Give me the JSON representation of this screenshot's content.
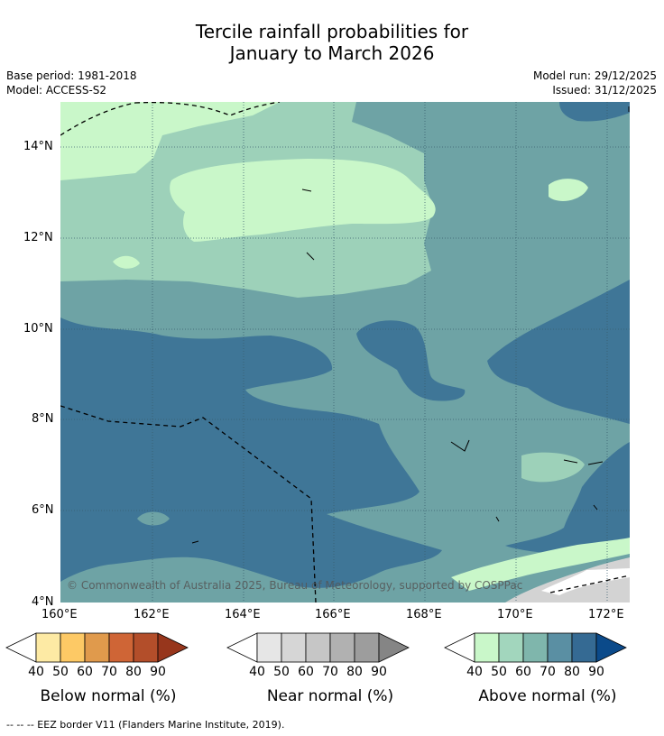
{
  "title": {
    "line1": "Tercile rainfall probabilities for",
    "line2": "January to March 2026"
  },
  "meta": {
    "base_period": "Base period: 1981-2018",
    "model": "Model: ACCESS-S2",
    "model_run": "Model run: 29/12/2025",
    "issued": "Issued: 31/12/2025"
  },
  "map": {
    "copyright": "© Commonwealth of Australia 2025, Bureau of Meteorology, supported by COSPPac",
    "lat_labels": [
      "14°N",
      "12°N",
      "10°N",
      "8°N",
      "6°N",
      "4°N"
    ],
    "lon_labels": [
      "160°E",
      "162°E",
      "164°E",
      "166°E",
      "168°E",
      "170°E",
      "172°E"
    ],
    "colors": {
      "above_50": "#c9f7c9",
      "above_60": "#9dd1b9",
      "above_70": "#6ea3a5",
      "above_80": "#3f7697",
      "near": "#d3d3d3"
    }
  },
  "colorbars": [
    {
      "name": "below",
      "title": "Below normal (%)",
      "labels": [
        "40",
        "50",
        "60",
        "70",
        "80",
        "90"
      ],
      "colors": [
        "#fdeaa4",
        "#fdc965",
        "#e09a4c",
        "#cf6536",
        "#b34e2a",
        "#97361c"
      ],
      "under_color": "#ffffff"
    },
    {
      "name": "near",
      "title": "Near normal (%)",
      "labels": [
        "40",
        "50",
        "60",
        "70",
        "80",
        "90"
      ],
      "colors": [
        "#e6e6e6",
        "#d6d6d6",
        "#c6c6c6",
        "#b1b1b1",
        "#9d9d9d",
        "#858585"
      ],
      "under_color": "#ffffff"
    },
    {
      "name": "above",
      "title": "Above normal (%)",
      "labels": [
        "40",
        "50",
        "60",
        "70",
        "80",
        "90"
      ],
      "colors": [
        "#c9f7c9",
        "#a2d6bd",
        "#7fb6ac",
        "#5a8fa3",
        "#356a93",
        "#0b4a8a"
      ],
      "under_color": "#ffffff"
    }
  ],
  "footer": "--  --  -- EEZ border V11 (Flanders Marine Institute, 2019)."
}
